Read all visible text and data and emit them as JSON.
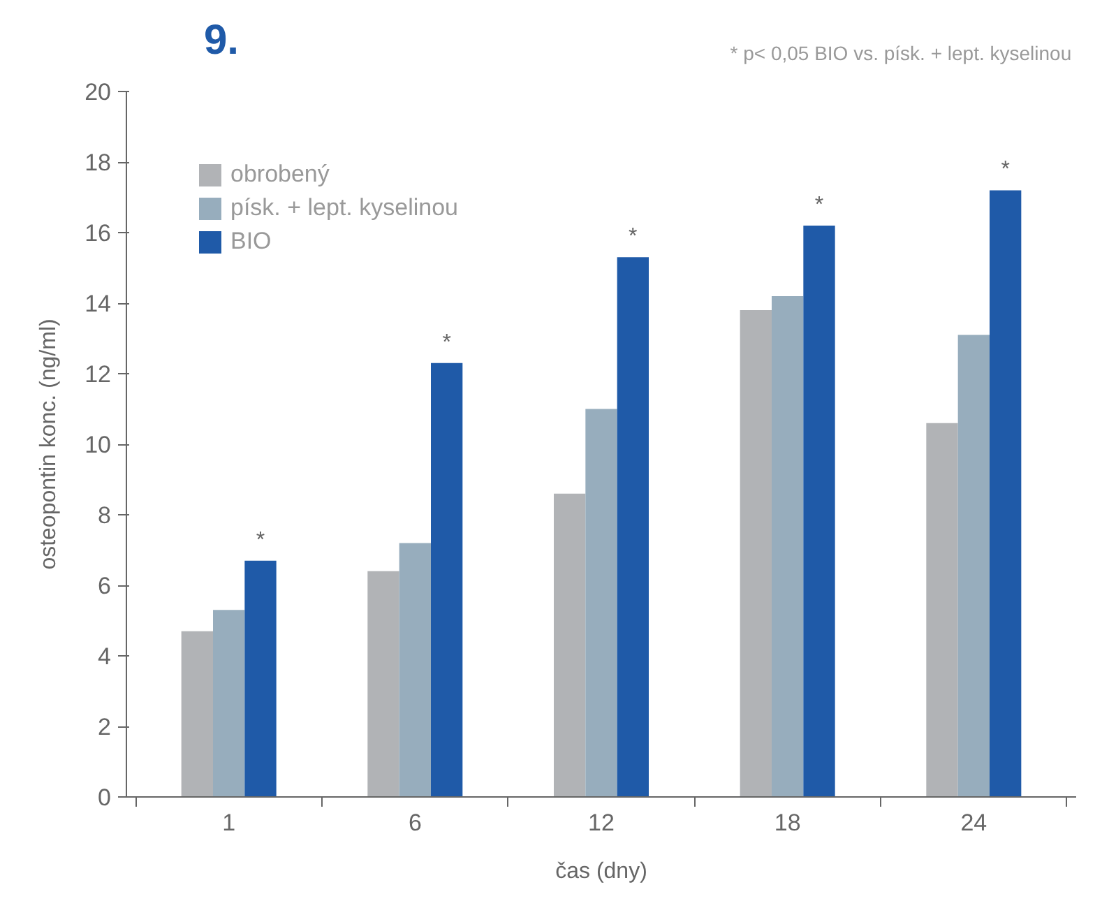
{
  "chart_data": {
    "type": "bar",
    "xlabel": "čas (dny)",
    "ylabel": "osteopontin konc. (ng/ml)",
    "categories": [
      "1",
      "6",
      "12",
      "18",
      "24"
    ],
    "series": [
      {
        "name": "obrobený",
        "color": "#b1b3b6",
        "values": [
          4.7,
          6.4,
          8.6,
          13.8,
          10.6
        ]
      },
      {
        "name": "písk. + lept. kyselinou",
        "color": "#97adbd",
        "values": [
          5.3,
          7.2,
          11.0,
          14.2,
          13.1
        ]
      },
      {
        "name": "BIO",
        "color": "#1f5aa8",
        "values": [
          6.7,
          12.3,
          15.3,
          16.2,
          17.2
        ]
      }
    ],
    "ylim": [
      0,
      20
    ],
    "yticks": [
      0,
      2,
      4,
      6,
      8,
      10,
      12,
      14,
      16,
      18,
      20
    ],
    "grid": false,
    "legend": "top left",
    "annotations": [
      "9.",
      "* p< 0,05 BIO vs. písk. + lept. kyselinou",
      "*",
      "*",
      "*",
      "*",
      "*"
    ]
  }
}
